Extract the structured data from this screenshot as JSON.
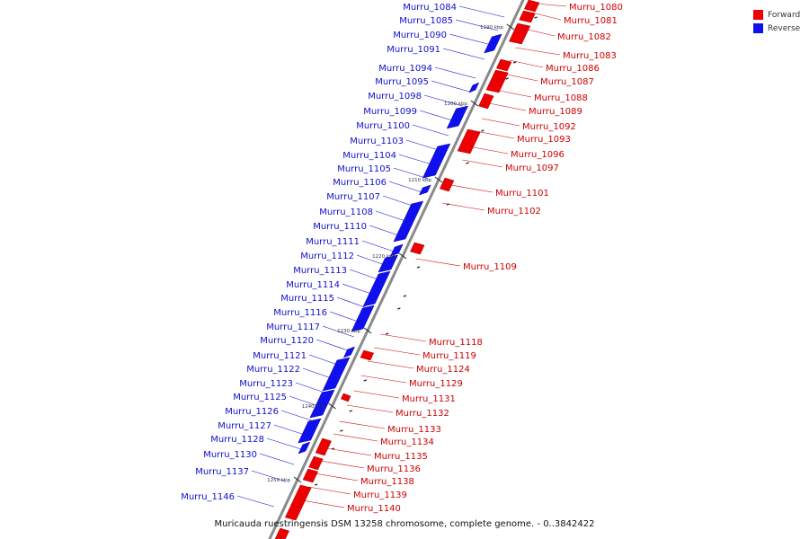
{
  "legend": {
    "forward_label": "Forward",
    "forward_color": "#ee0000",
    "reverse_label": "Reverse",
    "reverse_color": "#1010ee"
  },
  "caption": "Muricauda ruestringensis DSM 13258 chromosome, complete genome. - 0..3842422",
  "colors": {
    "backbone": "#8a8a8a",
    "forward_text": "#cc0000",
    "reverse_text": "#1010cc",
    "tick": "#222222"
  },
  "ticks": [
    "1190 kbp",
    "1200 kbp",
    "1210 kbp",
    "1220 kbp",
    "1230 kbp",
    "1240 kbp",
    "1250 kbp"
  ],
  "reverse_genes": [
    "Murru_1084",
    "Murru_1085",
    "Murru_1090",
    "Murru_1091",
    "Murru_1094",
    "Murru_1095",
    "Murru_1098",
    "Murru_1099",
    "Murru_1100",
    "Murru_1103",
    "Murru_1104",
    "Murru_1105",
    "Murru_1106",
    "Murru_1107",
    "Murru_1108",
    "Murru_1110",
    "Murru_1111",
    "Murru_1112",
    "Murru_1113",
    "Murru_1114",
    "Murru_1115",
    "Murru_1116",
    "Murru_1117",
    "Murru_1120",
    "Murru_1121",
    "Murru_1122",
    "Murru_1123",
    "Murru_1125",
    "Murru_1126",
    "Murru_1127",
    "Murru_1128",
    "Murru_1130",
    "Murru_1137",
    "Murru_1146"
  ],
  "forward_genes": [
    "Murru_1080",
    "Murru_1081",
    "Murru_1082",
    "Murru_1083",
    "Murru_1086",
    "Murru_1087",
    "Murru_1088",
    "Murru_1089",
    "Murru_1092",
    "Murru_1093",
    "Murru_1096",
    "Murru_1097",
    "Murru_1101",
    "Murru_1102",
    "Murru_1109",
    "Murru_1118",
    "Murru_1119",
    "Murru_1124",
    "Murru_1129",
    "Murru_1131",
    "Murru_1132",
    "Murru_1133",
    "Murru_1134",
    "Murru_1135",
    "Murru_1136",
    "Murru_1138",
    "Murru_1139",
    "Murru_1140"
  ]
}
